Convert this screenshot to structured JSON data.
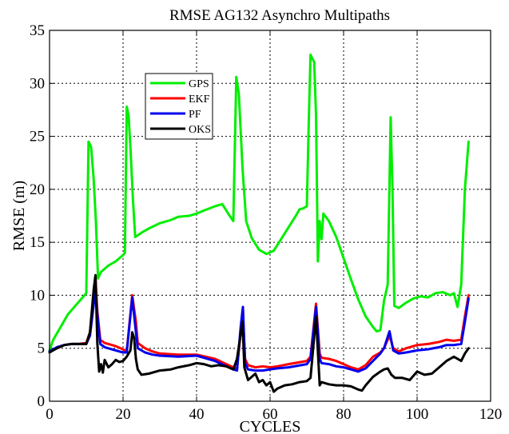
{
  "chart_data": {
    "type": "line",
    "title": "RMSE AG132 Asynchro Multipaths",
    "xlabel": "CYCLES",
    "ylabel": "RMSE (m)",
    "xlim": [
      0,
      120
    ],
    "ylim": [
      0,
      35
    ],
    "xticks": [
      0,
      20,
      40,
      60,
      80,
      100,
      120
    ],
    "yticks": [
      0,
      5,
      10,
      15,
      20,
      25,
      30,
      35
    ],
    "grid": true,
    "legend_position": "upper-left",
    "series": [
      {
        "name": "GPS",
        "color": "#00ee00",
        "points": [
          [
            0,
            4.8
          ],
          [
            1,
            5.8
          ],
          [
            3,
            7.0
          ],
          [
            5,
            8.2
          ],
          [
            7,
            9.0
          ],
          [
            9,
            9.8
          ],
          [
            10,
            10.2
          ],
          [
            10.6,
            24.5
          ],
          [
            11.3,
            24.0
          ],
          [
            12,
            21
          ],
          [
            12.6,
            17
          ],
          [
            13.2,
            11.6
          ],
          [
            14,
            12.2
          ],
          [
            16,
            12.8
          ],
          [
            18,
            13.2
          ],
          [
            20,
            13.8
          ],
          [
            20.5,
            14.0
          ],
          [
            21,
            27.8
          ],
          [
            21.5,
            27.0
          ],
          [
            22,
            24
          ],
          [
            22.7,
            19
          ],
          [
            23.3,
            15.5
          ],
          [
            25,
            15.9
          ],
          [
            27,
            16.3
          ],
          [
            30,
            16.8
          ],
          [
            33,
            17.1
          ],
          [
            35,
            17.4
          ],
          [
            38,
            17.5
          ],
          [
            40,
            17.7
          ],
          [
            42,
            18.0
          ],
          [
            45,
            18.4
          ],
          [
            47,
            18.6
          ],
          [
            49,
            17.5
          ],
          [
            50,
            17.0
          ],
          [
            50.8,
            30.6
          ],
          [
            51.5,
            29
          ],
          [
            52.5,
            22
          ],
          [
            53.5,
            17
          ],
          [
            55,
            15.4
          ],
          [
            57,
            14.3
          ],
          [
            59,
            13.9
          ],
          [
            61,
            14.2
          ],
          [
            63,
            15.3
          ],
          [
            65,
            16.4
          ],
          [
            67,
            17.5
          ],
          [
            68,
            18.1
          ],
          [
            69,
            18.2
          ],
          [
            70,
            18.4
          ],
          [
            70.5,
            26
          ],
          [
            71,
            32.7
          ],
          [
            72,
            32
          ],
          [
            72.5,
            27
          ],
          [
            73,
            13.2
          ],
          [
            73.5,
            17
          ],
          [
            74,
            15.3
          ],
          [
            74.5,
            17.7
          ],
          [
            76,
            17.0
          ],
          [
            78,
            15.5
          ],
          [
            80,
            13.5
          ],
          [
            82,
            11.5
          ],
          [
            84,
            9.6
          ],
          [
            86,
            8.0
          ],
          [
            88,
            7.0
          ],
          [
            89,
            6.6
          ],
          [
            90,
            6.7
          ],
          [
            91,
            9.5
          ],
          [
            92,
            11
          ],
          [
            92.8,
            26.8
          ],
          [
            93.3,
            20
          ],
          [
            93.8,
            9.0
          ],
          [
            95,
            8.8
          ],
          [
            97,
            9.3
          ],
          [
            99,
            9.7
          ],
          [
            101,
            9.9
          ],
          [
            103,
            9.8
          ],
          [
            105,
            10.2
          ],
          [
            107,
            10.3
          ],
          [
            109,
            10.0
          ],
          [
            110,
            10.2
          ],
          [
            111,
            8.9
          ],
          [
            112,
            11
          ],
          [
            113,
            20
          ],
          [
            114,
            24.5
          ]
        ]
      },
      {
        "name": "EKF",
        "color": "#ff0000",
        "points": [
          [
            0,
            4.7
          ],
          [
            2,
            5.0
          ],
          [
            4,
            5.3
          ],
          [
            6,
            5.4
          ],
          [
            8,
            5.4
          ],
          [
            10,
            5.5
          ],
          [
            11,
            6.5
          ],
          [
            12.5,
            11.7
          ],
          [
            13,
            8.5
          ],
          [
            13.8,
            5.8
          ],
          [
            15,
            5.5
          ],
          [
            18,
            5.2
          ],
          [
            20,
            4.9
          ],
          [
            21,
            4.7
          ],
          [
            22.5,
            10.0
          ],
          [
            23.5,
            7.5
          ],
          [
            24,
            5.5
          ],
          [
            26,
            5.0
          ],
          [
            28,
            4.7
          ],
          [
            30,
            4.5
          ],
          [
            35,
            4.4
          ],
          [
            40,
            4.4
          ],
          [
            45,
            4.0
          ],
          [
            50,
            3.2
          ],
          [
            51,
            3.1
          ],
          [
            52,
            6.5
          ],
          [
            52.6,
            8.0
          ],
          [
            53.2,
            4.0
          ],
          [
            54,
            3.4
          ],
          [
            56,
            3.2
          ],
          [
            58,
            3.3
          ],
          [
            60,
            3.2
          ],
          [
            62,
            3.3
          ],
          [
            65,
            3.5
          ],
          [
            70,
            3.8
          ],
          [
            71,
            4.2
          ],
          [
            72.5,
            9.2
          ],
          [
            73.5,
            4.5
          ],
          [
            74,
            4.1
          ],
          [
            76,
            4.0
          ],
          [
            78,
            3.8
          ],
          [
            80,
            3.5
          ],
          [
            82,
            3.2
          ],
          [
            84,
            3.0
          ],
          [
            86,
            3.4
          ],
          [
            88,
            4.2
          ],
          [
            90,
            4.6
          ],
          [
            91,
            5.0
          ],
          [
            92.5,
            6.2
          ],
          [
            93.5,
            5.0
          ],
          [
            95,
            4.7
          ],
          [
            97,
            5.0
          ],
          [
            100,
            5.3
          ],
          [
            103,
            5.4
          ],
          [
            106,
            5.6
          ],
          [
            108,
            5.8
          ],
          [
            110,
            5.7
          ],
          [
            112,
            5.8
          ],
          [
            113,
            8
          ],
          [
            114,
            10.0
          ]
        ]
      },
      {
        "name": "PF",
        "color": "#0000ee",
        "points": [
          [
            0,
            4.7
          ],
          [
            2,
            5.1
          ],
          [
            4,
            5.3
          ],
          [
            6,
            5.4
          ],
          [
            8,
            5.4
          ],
          [
            10,
            5.4
          ],
          [
            11,
            6.2
          ],
          [
            12.5,
            10.5
          ],
          [
            13,
            8.2
          ],
          [
            13.8,
            5.4
          ],
          [
            15,
            5.1
          ],
          [
            18,
            4.8
          ],
          [
            20,
            4.6
          ],
          [
            21,
            4.6
          ],
          [
            22.5,
            9.8
          ],
          [
            23.5,
            6.5
          ],
          [
            24,
            5.0
          ],
          [
            26,
            4.6
          ],
          [
            28,
            4.4
          ],
          [
            30,
            4.3
          ],
          [
            35,
            4.2
          ],
          [
            40,
            4.3
          ],
          [
            45,
            3.8
          ],
          [
            50,
            3.0
          ],
          [
            51,
            2.9
          ],
          [
            52,
            7.0
          ],
          [
            52.6,
            8.9
          ],
          [
            53.2,
            3.6
          ],
          [
            54,
            3.0
          ],
          [
            56,
            2.9
          ],
          [
            58,
            2.9
          ],
          [
            60,
            3.0
          ],
          [
            62,
            3.1
          ],
          [
            65,
            3.2
          ],
          [
            70,
            3.5
          ],
          [
            71,
            4.0
          ],
          [
            72.5,
            8.9
          ],
          [
            73.5,
            4.0
          ],
          [
            74,
            3.6
          ],
          [
            76,
            3.5
          ],
          [
            78,
            3.3
          ],
          [
            80,
            3.2
          ],
          [
            82,
            3.0
          ],
          [
            84,
            2.8
          ],
          [
            86,
            3.1
          ],
          [
            88,
            3.8
          ],
          [
            90,
            4.5
          ],
          [
            91,
            5.0
          ],
          [
            92.5,
            6.6
          ],
          [
            93.5,
            4.8
          ],
          [
            95,
            4.5
          ],
          [
            97,
            4.6
          ],
          [
            100,
            4.8
          ],
          [
            103,
            4.9
          ],
          [
            106,
            5.1
          ],
          [
            108,
            5.3
          ],
          [
            110,
            5.3
          ],
          [
            112,
            5.4
          ],
          [
            113,
            7.5
          ],
          [
            114,
            9.7
          ]
        ]
      },
      {
        "name": "OKS",
        "color": "#000000",
        "points": [
          [
            0,
            4.6
          ],
          [
            2,
            5.0
          ],
          [
            4,
            5.3
          ],
          [
            6,
            5.4
          ],
          [
            8,
            5.4
          ],
          [
            10,
            5.4
          ],
          [
            11,
            6.5
          ],
          [
            12,
            10.5
          ],
          [
            12.5,
            11.9
          ],
          [
            13,
            5.5
          ],
          [
            13.5,
            2.8
          ],
          [
            14,
            3.5
          ],
          [
            14.5,
            2.7
          ],
          [
            15,
            3.9
          ],
          [
            16,
            3.2
          ],
          [
            17,
            3.5
          ],
          [
            18,
            3.9
          ],
          [
            19,
            3.7
          ],
          [
            20,
            3.8
          ],
          [
            21,
            4.2
          ],
          [
            22,
            4.8
          ],
          [
            22.5,
            6.5
          ],
          [
            23,
            6.0
          ],
          [
            23.5,
            4.0
          ],
          [
            24,
            3.0
          ],
          [
            25,
            2.5
          ],
          [
            27,
            2.6
          ],
          [
            30,
            2.9
          ],
          [
            33,
            3.0
          ],
          [
            35,
            3.2
          ],
          [
            38,
            3.4
          ],
          [
            40,
            3.6
          ],
          [
            42,
            3.5
          ],
          [
            44,
            3.3
          ],
          [
            46,
            3.4
          ],
          [
            48,
            3.3
          ],
          [
            50,
            3.0
          ],
          [
            51,
            4.0
          ],
          [
            52.5,
            7.5
          ],
          [
            53,
            3.2
          ],
          [
            54,
            2.0
          ],
          [
            55,
            2.3
          ],
          [
            56,
            2.6
          ],
          [
            57,
            1.8
          ],
          [
            58,
            2.0
          ],
          [
            59,
            1.5
          ],
          [
            60,
            1.8
          ],
          [
            61,
            0.9
          ],
          [
            62,
            1.2
          ],
          [
            64,
            1.5
          ],
          [
            66,
            1.6
          ],
          [
            68,
            1.8
          ],
          [
            70,
            1.9
          ],
          [
            71,
            2.2
          ],
          [
            72.5,
            8.0
          ],
          [
            73.5,
            1.5
          ],
          [
            74,
            1.8
          ],
          [
            76,
            1.6
          ],
          [
            78,
            1.5
          ],
          [
            80,
            1.5
          ],
          [
            82,
            1.4
          ],
          [
            84,
            1.1
          ],
          [
            85,
            1.0
          ],
          [
            86,
            1.5
          ],
          [
            88,
            2.3
          ],
          [
            90,
            2.8
          ],
          [
            91,
            3.0
          ],
          [
            92,
            3.1
          ],
          [
            93,
            2.5
          ],
          [
            94,
            2.2
          ],
          [
            96,
            2.2
          ],
          [
            98,
            2.0
          ],
          [
            100,
            2.8
          ],
          [
            102,
            2.5
          ],
          [
            104,
            2.6
          ],
          [
            106,
            3.2
          ],
          [
            108,
            3.8
          ],
          [
            110,
            4.2
          ],
          [
            112,
            3.8
          ],
          [
            113,
            4.5
          ],
          [
            114,
            5.0
          ]
        ]
      }
    ]
  }
}
